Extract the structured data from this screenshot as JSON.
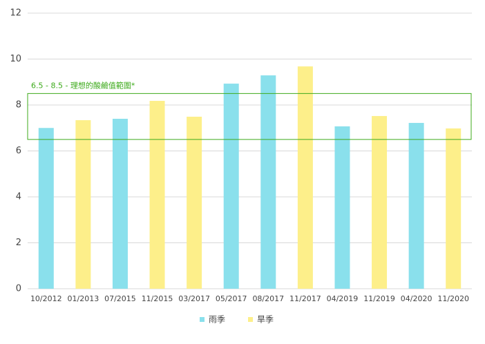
{
  "chart_data": {
    "type": "bar",
    "categories": [
      "10/2012",
      "01/2013",
      "07/2015",
      "11/2015",
      "03/2017",
      "05/2017",
      "08/2017",
      "11/2017",
      "04/2019",
      "11/2019",
      "04/2020",
      "11/2020"
    ],
    "series": [
      {
        "name": "雨季",
        "color": "#8ae0ec",
        "values": [
          7.0,
          null,
          7.4,
          null,
          null,
          8.93,
          9.29,
          null,
          7.07,
          null,
          7.22,
          null
        ]
      },
      {
        "name": "旱季",
        "color": "#fdef8a",
        "values": [
          null,
          7.34,
          null,
          8.18,
          7.49,
          null,
          null,
          9.68,
          null,
          7.52,
          null,
          6.98
        ]
      }
    ],
    "ylim": [
      0,
      12
    ],
    "yticks": [
      0,
      2,
      4,
      6,
      8,
      10,
      12
    ],
    "grid": true,
    "band": {
      "range": [
        6.5,
        8.5
      ],
      "label": "6.5 - 8.5 - 理想的酸鹼值範圍*",
      "color": "#3caa1a"
    },
    "legend": "bottom"
  }
}
